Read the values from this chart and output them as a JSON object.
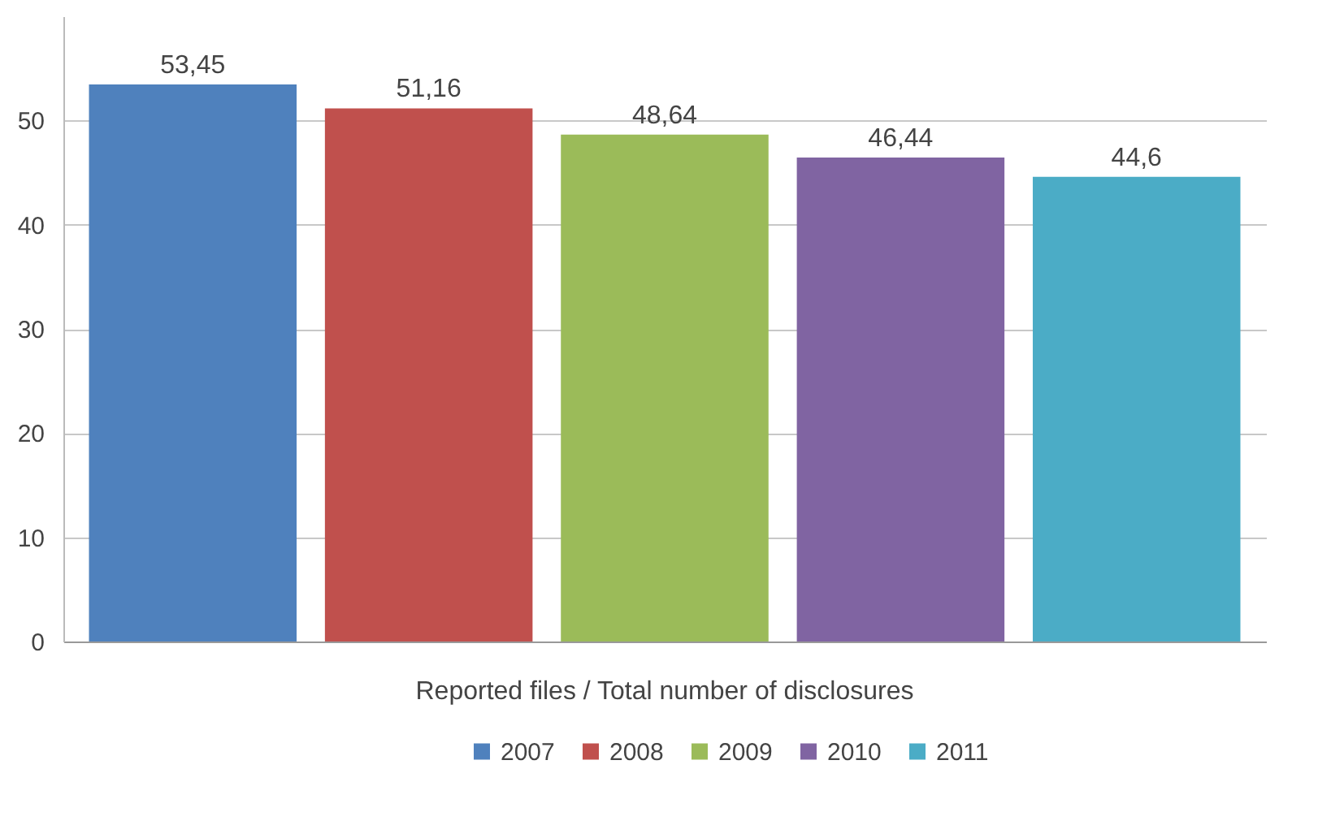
{
  "chart_data": {
    "type": "bar",
    "categories": [
      "Reported files / Total number of disclosures"
    ],
    "series": [
      {
        "name": "2007",
        "color": "#4f81bd",
        "values": [
          53.45
        ],
        "value_labels": [
          "53,45"
        ]
      },
      {
        "name": "2008",
        "color": "#c0504d",
        "values": [
          51.16
        ],
        "value_labels": [
          "51,16"
        ]
      },
      {
        "name": "2009",
        "color": "#9bbb59",
        "values": [
          48.64
        ],
        "value_labels": [
          "48,64"
        ]
      },
      {
        "name": "2010",
        "color": "#8064a2",
        "values": [
          46.44
        ],
        "value_labels": [
          "46,44"
        ]
      },
      {
        "name": "2011",
        "color": "#4bacc6",
        "values": [
          44.6
        ],
        "value_labels": [
          "44,6"
        ]
      }
    ],
    "ylim": [
      0,
      60
    ],
    "yticks": [
      0,
      10,
      20,
      30,
      40,
      50
    ],
    "grid": "y",
    "legend": "bottom"
  }
}
